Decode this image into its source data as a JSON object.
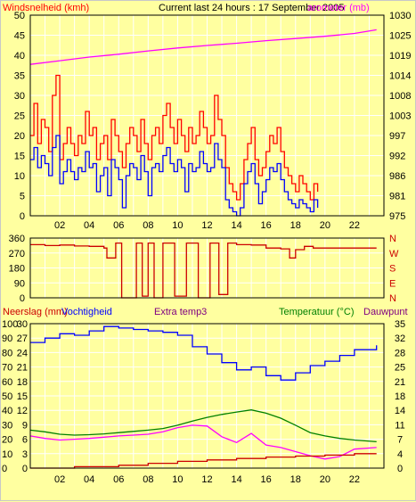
{
  "colors": {
    "background": "#ffffa0",
    "grid": "#ffffff",
    "wind_gust": "#ff0000",
    "wind_avg": "#0000ff",
    "barometer": "#ff00ff",
    "direction": "#cc0000",
    "rain": "#cc0000",
    "humidity": "#0000ff",
    "extra_temp": "#800080",
    "temperature": "#008000",
    "dewpoint": "#ff00ff",
    "temperature_label": "#008000",
    "dewpoint_label": "#800080"
  },
  "top": {
    "left_title": "Windsnelheid (kmh)",
    "center_title": "Current last 24 hours : 17 September 2005",
    "right_title": "arometer (mb)"
  },
  "mid": {
    "left_ticks": [
      "360",
      "270",
      "180",
      "90",
      "0"
    ],
    "right_labels": [
      "N",
      "W",
      "S",
      "E",
      "N"
    ]
  },
  "bottom": {
    "label_rain": "Neerslag (mm)",
    "label_humidity": "Vochtigheid",
    "label_extra": "Extra temp3",
    "label_temp": "Temperatuur (°C)",
    "label_dew": "Dauwpunt"
  },
  "chart_data": [
    {
      "type": "line",
      "title": "Current last 24 hours : 17 September 2005",
      "ylabel": "Windsnelheid (kmh)",
      "y2label": "arometer (mb)",
      "ylim": [
        0,
        50
      ],
      "y_ticks": [
        "0",
        "5",
        "10",
        "15",
        "20",
        "25",
        "30",
        "35",
        "40",
        "45",
        "50"
      ],
      "y2lim": [
        975,
        1030
      ],
      "y2_ticks": [
        "975",
        "981",
        "986",
        "992",
        "997",
        "1003",
        "1008",
        "1014",
        "1019",
        "1025",
        "1030"
      ],
      "x_ticks": [
        "02",
        "04",
        "06",
        "08",
        "10",
        "12",
        "14",
        "16",
        "18",
        "20",
        "22"
      ],
      "series": [
        {
          "name": "wind gust",
          "axis": "left",
          "x": [
            0.0,
            0.25,
            0.5,
            0.75,
            1.0,
            1.25,
            1.5,
            1.75,
            2.0,
            2.25,
            2.5,
            2.75,
            3.0,
            3.25,
            3.5,
            3.75,
            4.0,
            4.25,
            4.5,
            4.75,
            5.0,
            5.25,
            5.5,
            5.75,
            6.0,
            6.25,
            6.5,
            6.75,
            7.0,
            7.25,
            7.5,
            7.75,
            8.0,
            8.25,
            8.5,
            8.75,
            9.0,
            9.25,
            9.5,
            9.75,
            10.0,
            10.25,
            10.5,
            10.75,
            11.0,
            11.25,
            11.5,
            11.75,
            12.0,
            12.25,
            12.5,
            12.75,
            13.0,
            13.25,
            13.5,
            13.75,
            14.0,
            14.25,
            14.5,
            14.75,
            15.0,
            15.25,
            15.5,
            15.75,
            16.0,
            16.25,
            16.5,
            16.75,
            17.0,
            17.25,
            17.5,
            17.75,
            18.0,
            18.25,
            18.5,
            18.75,
            19.0,
            19.25,
            19.5
          ],
          "values": [
            20,
            28,
            18,
            24,
            22,
            16,
            30,
            35,
            14,
            18,
            22,
            18,
            15,
            20,
            18,
            26,
            20,
            22,
            14,
            18,
            20,
            14,
            24,
            20,
            16,
            12,
            18,
            22,
            20,
            16,
            24,
            18,
            14,
            20,
            22,
            18,
            25,
            28,
            22,
            18,
            24,
            20,
            16,
            22,
            18,
            20,
            26,
            22,
            18,
            20,
            30,
            24,
            20,
            12,
            8,
            6,
            4,
            8,
            14,
            18,
            22,
            14,
            10,
            12,
            16,
            20,
            18,
            22,
            16,
            12,
            10,
            8,
            6,
            10,
            8,
            6,
            4,
            8,
            6
          ]
        },
        {
          "name": "wind avg",
          "axis": "left",
          "x": [
            0.0,
            0.25,
            0.5,
            0.75,
            1.0,
            1.25,
            1.5,
            1.75,
            2.0,
            2.25,
            2.5,
            2.75,
            3.0,
            3.25,
            3.5,
            3.75,
            4.0,
            4.25,
            4.5,
            4.75,
            5.0,
            5.25,
            5.5,
            5.75,
            6.0,
            6.25,
            6.5,
            6.75,
            7.0,
            7.25,
            7.5,
            7.75,
            8.0,
            8.25,
            8.5,
            8.75,
            9.0,
            9.25,
            9.5,
            9.75,
            10.0,
            10.25,
            10.5,
            10.75,
            11.0,
            11.25,
            11.5,
            11.75,
            12.0,
            12.25,
            12.5,
            12.75,
            13.0,
            13.25,
            13.5,
            13.75,
            14.0,
            14.25,
            14.5,
            14.75,
            15.0,
            15.25,
            15.5,
            15.75,
            16.0,
            16.25,
            16.5,
            16.75,
            17.0,
            17.25,
            17.5,
            17.75,
            18.0,
            18.25,
            18.5,
            18.75,
            19.0,
            19.25,
            19.5
          ],
          "values": [
            14,
            17,
            12,
            15,
            13,
            10,
            17,
            20,
            8,
            11,
            14,
            11,
            9,
            12,
            11,
            16,
            12,
            13,
            6,
            10,
            12,
            5,
            14,
            12,
            9,
            2,
            10,
            13,
            12,
            9,
            15,
            11,
            5,
            12,
            13,
            11,
            15,
            17,
            13,
            11,
            14,
            12,
            6,
            13,
            11,
            12,
            16,
            13,
            11,
            12,
            18,
            14,
            12,
            4,
            2,
            1,
            0,
            2,
            8,
            11,
            13,
            8,
            3,
            6,
            9,
            12,
            11,
            13,
            9,
            6,
            4,
            3,
            2,
            4,
            3,
            2,
            1,
            4,
            2
          ]
        },
        {
          "name": "barometer",
          "axis": "right",
          "x": [
            0,
            2,
            4,
            6,
            8,
            10,
            12,
            14,
            16,
            18,
            20,
            22,
            23.5
          ],
          "values": [
            1016.5,
            1017.5,
            1018.5,
            1019.3,
            1020.2,
            1021.0,
            1021.7,
            1022.3,
            1023.0,
            1023.6,
            1024.2,
            1025.0,
            1026.0
          ]
        }
      ]
    },
    {
      "type": "line",
      "ylabel": "",
      "ylim": [
        0,
        360
      ],
      "y_ticks": [
        "0",
        "90",
        "180",
        "270",
        "360"
      ],
      "x_ticks": [
        "02",
        "04",
        "06",
        "08",
        "10",
        "12",
        "14",
        "16",
        "18",
        "20",
        "22"
      ],
      "series": [
        {
          "name": "wind direction",
          "x": [
            0,
            1,
            2,
            3,
            4,
            5,
            5.2,
            5.8,
            6.2,
            7.2,
            7.6,
            8.0,
            8.4,
            9.0,
            9.8,
            10.6,
            11.4,
            12.2,
            12.8,
            13.4,
            14,
            15,
            16,
            17,
            17.6,
            18,
            18.6,
            19.2,
            20,
            22,
            23.5
          ],
          "values": [
            320,
            315,
            318,
            312,
            310,
            300,
            240,
            330,
            0,
            330,
            10,
            330,
            0,
            330,
            10,
            330,
            0,
            330,
            20,
            330,
            320,
            318,
            300,
            295,
            240,
            290,
            310,
            300,
            300,
            300,
            300
          ]
        }
      ]
    },
    {
      "type": "line",
      "ylabel": "Neerslag (mm) / Vochtigheid",
      "y2label": "Temperatuur (°C) / Dauwpunt",
      "x_ticks": [
        "02",
        "04",
        "06",
        "08",
        "10",
        "12",
        "14",
        "16",
        "18",
        "20",
        "22"
      ],
      "ylim": [
        0,
        100
      ],
      "y_ticks_humidity": [
        "0",
        "10",
        "20",
        "30",
        "40",
        "50",
        "60",
        "70",
        "80",
        "90",
        "100"
      ],
      "y_ticks_rain": [
        "0",
        "3",
        "6",
        "9",
        "12",
        "15",
        "18",
        "21",
        "24",
        "27",
        "30"
      ],
      "y2lim": [
        0,
        35
      ],
      "y2_ticks": [
        "0",
        "4",
        "7",
        "11",
        "14",
        "18",
        "21",
        "25",
        "28",
        "32",
        "35"
      ],
      "series": [
        {
          "name": "Vochtigheid",
          "axis": "humidity",
          "x": [
            0,
            1,
            2,
            3,
            4,
            5,
            6,
            7,
            8,
            9,
            10,
            11,
            12,
            13,
            14,
            15,
            16,
            17,
            18,
            19,
            20,
            21,
            22,
            23.5
          ],
          "values": [
            87,
            90,
            93,
            92,
            95,
            98,
            97,
            96,
            95,
            94,
            92,
            84,
            79,
            73,
            68,
            70,
            64,
            61,
            66,
            71,
            74,
            78,
            82,
            85
          ]
        },
        {
          "name": "Neerslag",
          "axis": "rain",
          "x": [
            0,
            3,
            6,
            8,
            10,
            12,
            14,
            16,
            18,
            20,
            22,
            23.5
          ],
          "values": [
            0.0,
            0.3,
            0.6,
            1.0,
            1.4,
            1.7,
            2.0,
            2.3,
            2.5,
            2.7,
            3.0,
            3.0
          ]
        },
        {
          "name": "Temperatuur",
          "axis": "right",
          "x": [
            0,
            1,
            2,
            3,
            4,
            5,
            6,
            7,
            8,
            9,
            10,
            11,
            12,
            13,
            14,
            15,
            16,
            17,
            18,
            19,
            20,
            21,
            22,
            23.5
          ],
          "values": [
            9.2,
            8.8,
            8.2,
            8.0,
            8.1,
            8.3,
            8.6,
            8.9,
            9.2,
            9.6,
            10.4,
            11.4,
            12.3,
            13.0,
            13.6,
            14.1,
            13.3,
            12.1,
            10.4,
            8.6,
            7.8,
            7.2,
            6.8,
            6.4
          ]
        },
        {
          "name": "Dauwpunt",
          "axis": "right",
          "x": [
            0,
            1,
            2,
            3,
            4,
            5,
            6,
            7,
            8,
            9,
            10,
            11,
            12,
            13,
            14,
            15,
            16,
            17,
            18,
            19,
            20,
            21,
            22,
            23.5
          ],
          "values": [
            7.8,
            7.2,
            6.8,
            7.0,
            7.2,
            7.5,
            7.8,
            8.0,
            8.2,
            8.8,
            9.8,
            10.4,
            10.2,
            7.6,
            6.2,
            8.4,
            5.6,
            5.0,
            4.0,
            3.0,
            2.2,
            2.8,
            4.6,
            5.0
          ]
        },
        {
          "name": "Extra temp3",
          "axis": "right",
          "x": [
            0,
            3,
            6,
            9,
            12,
            15,
            18,
            21,
            23.5
          ],
          "values": [
            0,
            0,
            0,
            0,
            0,
            0,
            0,
            0,
            0
          ]
        }
      ]
    }
  ]
}
